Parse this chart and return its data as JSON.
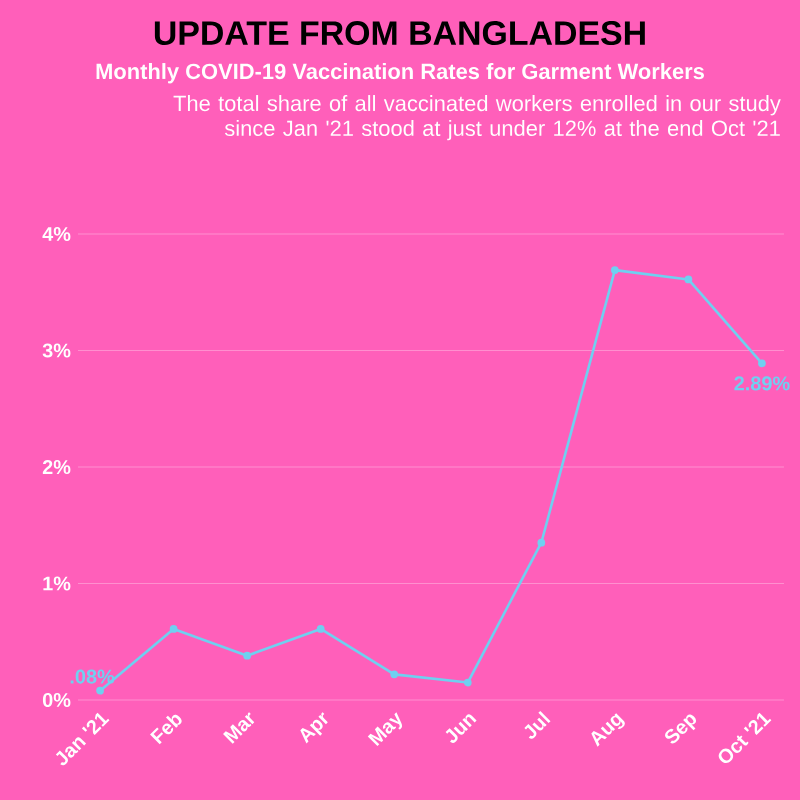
{
  "chart_data": {
    "type": "line",
    "title": "UPDATE FROM BANGLADESH",
    "subtitle": "Monthly COVID-19 Vaccination Rates for Garment Workers",
    "annotations": [
      "The total share of all vaccinated workers enrolled in our study since Jan '21 stood at just under 12% at the end Oct '21"
    ],
    "categories": [
      "Jan '21",
      "Feb",
      "Mar",
      "Apr",
      "May",
      "Jun",
      "Jul",
      "Aug",
      "Sep",
      "Oct '21"
    ],
    "series": [
      {
        "color": "#6fd0f0",
        "values": [
          0.08,
          0.61,
          0.38,
          0.61,
          0.22,
          0.15,
          1.35,
          3.69,
          3.61,
          2.89
        ],
        "value_labels": [
          ".08%",
          null,
          null,
          null,
          null,
          null,
          null,
          null,
          null,
          "2.89%"
        ]
      }
    ],
    "ylim": [
      0,
      4
    ],
    "yticks": [
      {
        "value": 0,
        "label": "0%"
      },
      {
        "value": 1,
        "label": "1%"
      },
      {
        "value": 2,
        "label": "2%"
      },
      {
        "value": 3,
        "label": "3%"
      },
      {
        "value": 4,
        "label": "4%"
      }
    ],
    "grid": "y",
    "marker": "circle",
    "line_style": "solid"
  }
}
